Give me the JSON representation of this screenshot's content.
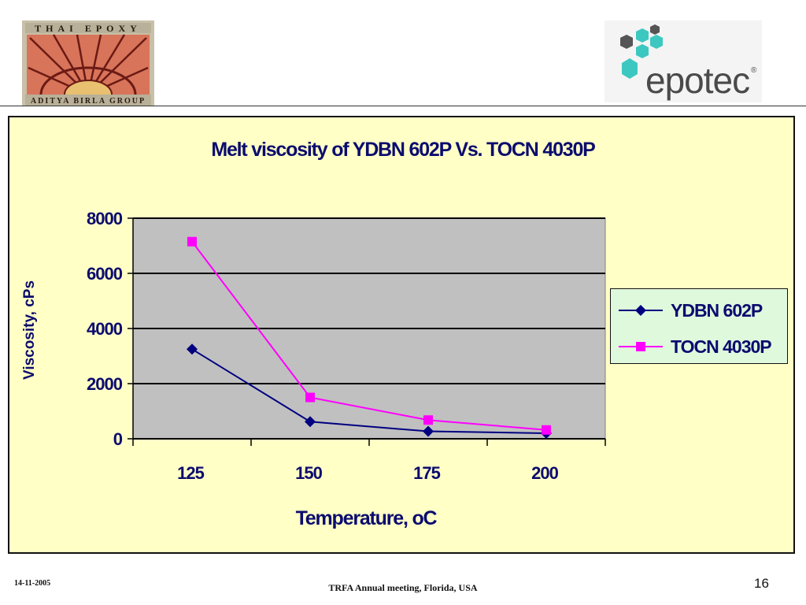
{
  "logos": {
    "left_text_top": "THAI EPOXY",
    "left_text_bottom": "ADITYA BIRLA GROUP",
    "right_text": "epotec",
    "right_mark": "®"
  },
  "chart_data": {
    "type": "line",
    "title": "Melt viscosity of YDBN 602P Vs. TOCN 4030P",
    "xlabel": "Temperature, oC",
    "ylabel": "Viscosity, cPs",
    "categories": [
      "125",
      "150",
      "175",
      "200"
    ],
    "ylim": [
      0,
      8000
    ],
    "yticks": [
      0,
      2000,
      4000,
      6000,
      8000
    ],
    "grid": true,
    "legend_position": "right",
    "series": [
      {
        "name": "YDBN 602P",
        "values": [
          3250,
          620,
          270,
          200
        ],
        "color": "#000080",
        "marker": "diamond"
      },
      {
        "name": "TOCN 4030P",
        "values": [
          7150,
          1500,
          680,
          320
        ],
        "color": "#ff00ff",
        "marker": "square"
      }
    ],
    "plot_background": "#c0c0c0",
    "panel_background": "#ffffc6",
    "legend_background": "#dff9dd"
  },
  "footer": {
    "date": "14-11-2005",
    "event": "TRFA Annual meeting, Florida, USA",
    "page": "16"
  }
}
